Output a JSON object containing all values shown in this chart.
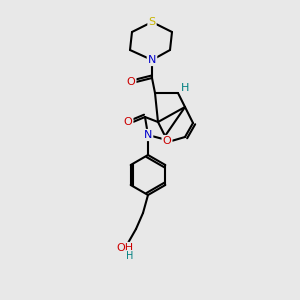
{
  "bg_color": "#e8e8e8",
  "atom_colors": {
    "S": "#c8b400",
    "N": "#0000cc",
    "O": "#cc0000",
    "C": "#000000",
    "H": "#008080"
  },
  "fig_size": [
    3.0,
    3.0
  ],
  "dpi": 100
}
